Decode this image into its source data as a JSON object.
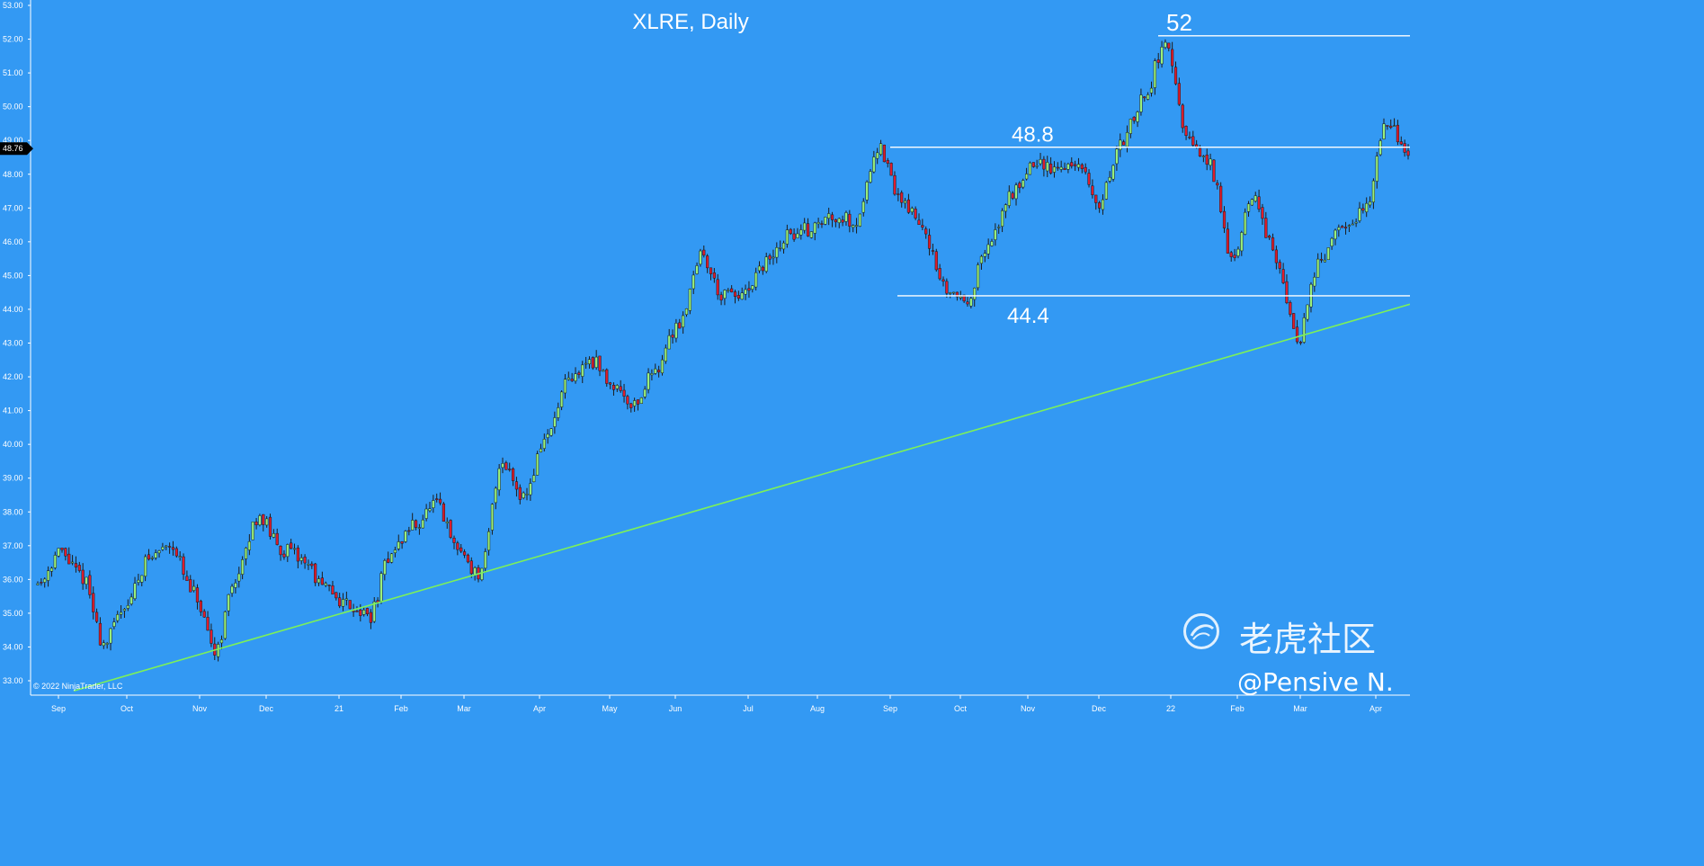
{
  "chart_data": {
    "type": "candlestick",
    "title": "XLRE, Daily",
    "copyright": "© 2022 NinjaTrader, LLC",
    "ylim": [
      33,
      53
    ],
    "yticks": [
      "33.00",
      "34.00",
      "35.00",
      "36.00",
      "37.00",
      "38.00",
      "39.00",
      "40.00",
      "41.00",
      "42.00",
      "43.00",
      "44.00",
      "45.00",
      "46.00",
      "47.00",
      "48.00",
      "49.00",
      "50.00",
      "51.00",
      "52.00",
      "53.00"
    ],
    "xticks": [
      "Sep",
      "Oct",
      "Nov",
      "Dec",
      "21",
      "Feb",
      "Mar",
      "Apr",
      "May",
      "Jun",
      "Jul",
      "Aug",
      "Sep",
      "Oct",
      "Nov",
      "Dec",
      "22",
      "Feb",
      "Mar",
      "Apr"
    ],
    "last_price": "48.76",
    "levels": [
      {
        "label": "52",
        "value": 52.1
      },
      {
        "label": "48.8",
        "value": 48.8
      },
      {
        "label": "44.4",
        "value": 44.4
      }
    ],
    "trendline": [
      {
        "date": "Sep 2020",
        "value": 32.7
      },
      {
        "date": "Apr 2022",
        "value": 44.15
      }
    ],
    "price_path": [
      [
        "Sep 2020",
        35.9
      ],
      [
        "mid-Sep 2020",
        36.8
      ],
      [
        "late Sep 2020",
        36.1
      ],
      [
        "Sep 2020 low",
        34.1
      ],
      [
        "Oct 2020",
        35.3
      ],
      [
        "mid-Oct 2020",
        36.6
      ],
      [
        "mid-Oct 2020 high",
        37.1
      ],
      [
        "late Oct 2020",
        35.6
      ],
      [
        "Nov 2020 low",
        33.9
      ],
      [
        "Nov 2020",
        36.1
      ],
      [
        "Nov 2020 high",
        37.9
      ],
      [
        "Dec 2020",
        36.9
      ],
      [
        "mid-Dec 2020",
        36.6
      ],
      [
        "late Dec 2020",
        35.7
      ],
      [
        "Jan 2021",
        35.3
      ],
      [
        "Jan 2021 low",
        34.9
      ],
      [
        "Feb 2021",
        36.8
      ],
      [
        "mid-Feb 2021",
        37.6
      ],
      [
        "late Feb 2021",
        38.2
      ],
      [
        "Mar 2021",
        36.9
      ],
      [
        "Mar 2021 low",
        36.1
      ],
      [
        "Mar 2021 high",
        39.5
      ],
      [
        "late Mar 2021",
        38.5
      ],
      [
        "Apr 2021",
        40.2
      ],
      [
        "mid-Apr 2021",
        41.8
      ],
      [
        "late Apr 2021",
        42.5
      ],
      [
        "May 2021",
        41.8
      ],
      [
        "May 2021 low",
        41.2
      ],
      [
        "late May 2021",
        42.3
      ],
      [
        "Jun 2021",
        43.6
      ],
      [
        "Jun 2021 high",
        45.6
      ],
      [
        "late Jun 2021",
        44.4
      ],
      [
        "Jul 2021",
        44.4
      ],
      [
        "mid-Jul 2021",
        45.4
      ],
      [
        "late Jul 2021",
        46.2
      ],
      [
        "Aug 2021",
        46.4
      ],
      [
        "mid-Aug 2021",
        46.8
      ],
      [
        "late Aug 2021",
        46.6
      ],
      [
        "Sep 2021 high",
        48.8
      ],
      [
        "Sep 2021",
        47.3
      ],
      [
        "late Sep 2021",
        46.5
      ],
      [
        "Oct 2021",
        44.6
      ],
      [
        "Oct 2021 low",
        44.3
      ],
      [
        "mid-Oct 2021",
        45.8
      ],
      [
        "late Oct 2021",
        47.4
      ],
      [
        "Nov 2021",
        48.3
      ],
      [
        "mid-Nov 2021",
        48.2
      ],
      [
        "late Nov 2021",
        48.3
      ],
      [
        "Dec 2021",
        47.1
      ],
      [
        "mid-Dec 2021",
        48.9
      ],
      [
        "late Dec 2021",
        50.2
      ],
      [
        "Jan 2022 high",
        51.9
      ],
      [
        "Jan 2022",
        49.0
      ],
      [
        "mid-Jan 2022",
        48.3
      ],
      [
        "late Jan 2022",
        45.6
      ],
      [
        "Feb 2022",
        47.3
      ],
      [
        "mid-Feb 2022",
        45.6
      ],
      [
        "Mar 2022 low",
        43.1
      ],
      [
        "Mar 2022",
        45.4
      ],
      [
        "mid-Mar 2022",
        46.4
      ],
      [
        "late Mar 2022",
        46.9
      ],
      [
        "Apr 2022",
        49.6
      ],
      [
        "Apr 2022 last",
        48.76
      ]
    ]
  },
  "watermark": {
    "brand": "老虎社区",
    "handle": "@Pensive N."
  },
  "colors": {
    "background": "#3399f3",
    "up_candle": "#9af07a",
    "down_candle": "#e01c2c",
    "wick": "#1b1b1b",
    "trendline": "#7cf05a",
    "levels": "#ffffff",
    "price_marker": "#000000"
  }
}
